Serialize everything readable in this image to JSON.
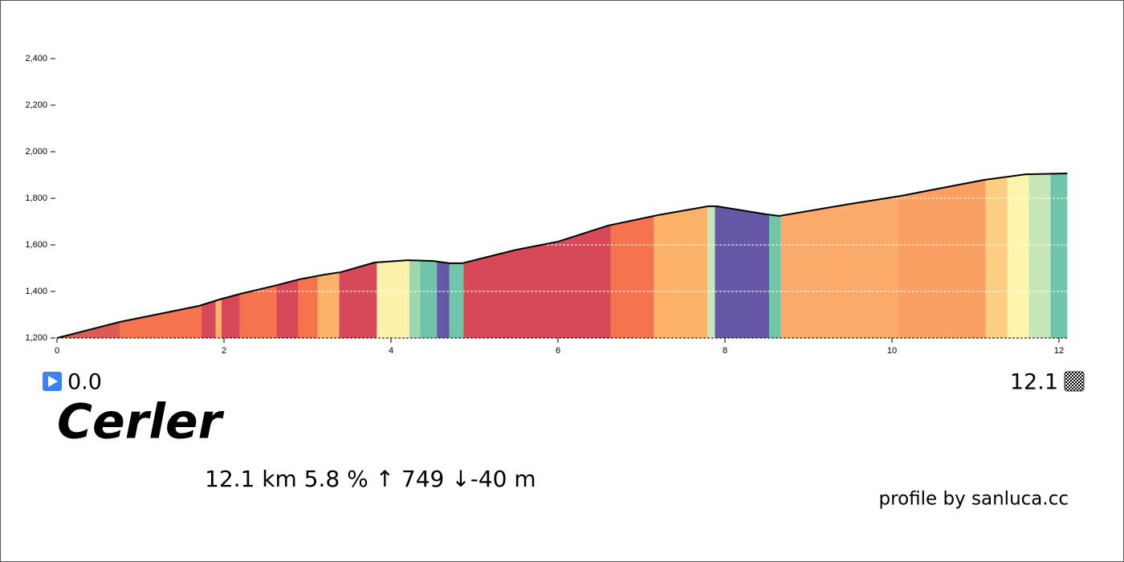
{
  "chart_data": {
    "type": "area",
    "x": [
      0,
      0.75,
      1.7,
      1.95,
      2.2,
      2.6,
      2.9,
      3.2,
      3.4,
      3.8,
      4.2,
      4.5,
      4.7,
      4.85,
      5.5,
      6.0,
      6.6,
      7.2,
      7.8,
      7.9,
      8.5,
      8.65,
      9.5,
      10.1,
      11.1,
      11.6,
      12.1
    ],
    "y": [
      1200,
      1269,
      1338,
      1366,
      1390,
      1424,
      1452,
      1472,
      1483,
      1524,
      1534,
      1531,
      1521,
      1521,
      1579,
      1614,
      1683,
      1728,
      1766,
      1766,
      1731,
      1724,
      1776,
      1810,
      1879,
      1903,
      1907
    ],
    "segments": [
      {
        "start": 0,
        "end": 0.75,
        "color": "#d9534b"
      },
      {
        "start": 0.75,
        "end": 1.73,
        "color": "#f46d43"
      },
      {
        "start": 1.73,
        "end": 1.9,
        "color": "#d53e4f"
      },
      {
        "start": 1.9,
        "end": 1.97,
        "color": "#fdae61"
      },
      {
        "start": 1.97,
        "end": 2.19,
        "color": "#d53e4f"
      },
      {
        "start": 2.19,
        "end": 2.63,
        "color": "#f46d43"
      },
      {
        "start": 2.63,
        "end": 2.89,
        "color": "#d53e4f"
      },
      {
        "start": 2.89,
        "end": 3.12,
        "color": "#f46d43"
      },
      {
        "start": 3.12,
        "end": 3.38,
        "color": "#fdae61"
      },
      {
        "start": 3.38,
        "end": 3.83,
        "color": "#d53e4f"
      },
      {
        "start": 3.83,
        "end": 4.22,
        "color": "#fef0a5"
      },
      {
        "start": 4.22,
        "end": 4.35,
        "color": "#99d5a4"
      },
      {
        "start": 4.35,
        "end": 4.55,
        "color": "#66c2a5"
      },
      {
        "start": 4.55,
        "end": 4.7,
        "color": "#5e4fa2"
      },
      {
        "start": 4.7,
        "end": 4.87,
        "color": "#66c2a5"
      },
      {
        "start": 4.87,
        "end": 6.63,
        "color": "#d53e4f"
      },
      {
        "start": 6.63,
        "end": 7.15,
        "color": "#f46d43"
      },
      {
        "start": 7.15,
        "end": 7.79,
        "color": "#fdae61"
      },
      {
        "start": 7.79,
        "end": 7.88,
        "color": "#c4e6b4"
      },
      {
        "start": 7.88,
        "end": 8.53,
        "color": "#5e4fa2"
      },
      {
        "start": 8.53,
        "end": 8.67,
        "color": "#66c2a5"
      },
      {
        "start": 8.67,
        "end": 10.07,
        "color": "#fca562"
      },
      {
        "start": 10.07,
        "end": 11.12,
        "color": "#f99b5a"
      },
      {
        "start": 11.12,
        "end": 11.38,
        "color": "#fdca7a"
      },
      {
        "start": 11.38,
        "end": 11.64,
        "color": "#fef3a8"
      },
      {
        "start": 11.64,
        "end": 11.9,
        "color": "#c4e6b4"
      },
      {
        "start": 11.9,
        "end": 12.1,
        "color": "#66c2a5"
      }
    ],
    "xlim": [
      0,
      12.1
    ],
    "xticks": [
      0,
      2,
      4,
      6,
      8,
      10,
      12
    ],
    "ylim": [
      1200,
      2400
    ],
    "yticks": [
      {
        "value": 1200,
        "label": "1,200"
      },
      {
        "value": 1400,
        "label": "1,400"
      },
      {
        "value": 1600,
        "label": "1,600"
      },
      {
        "value": 1800,
        "label": "1,800"
      },
      {
        "value": 2000,
        "label": "2,000"
      },
      {
        "value": 2200,
        "label": "2,200"
      },
      {
        "value": 2400,
        "label": "2,400"
      }
    ],
    "grid": true,
    "start_label": "0.0",
    "end_label": "12.1",
    "title": "Cerler",
    "stats": "12.1 km 5.8 %  ↑ 749 ↓-40 m",
    "credit": "profile by sanluca.cc"
  }
}
